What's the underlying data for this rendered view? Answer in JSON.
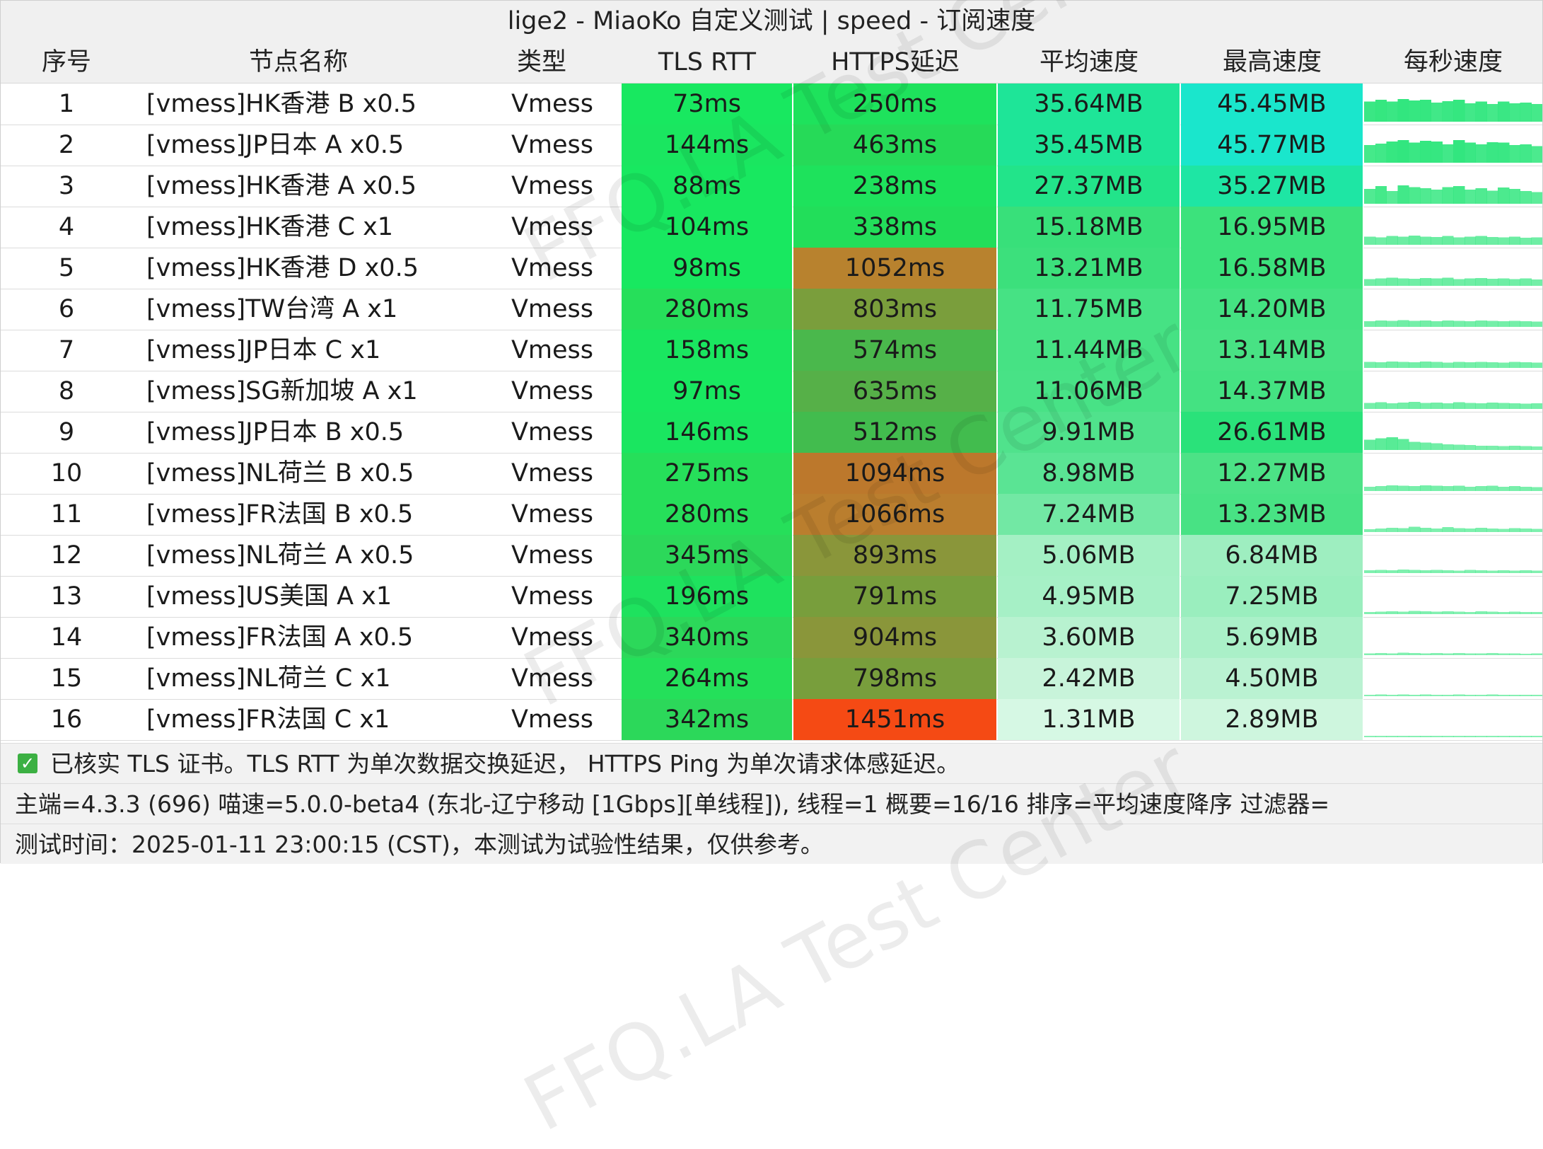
{
  "title": "lige2 - MiaoKo 自定义测试 | speed - 订阅速度",
  "columns": [
    "序号",
    "节点名称",
    "类型",
    "TLS RTT",
    "HTTPS延迟",
    "平均速度",
    "最高速度",
    "每秒速度"
  ],
  "rows": [
    {
      "idx": "1",
      "name": "[vmess]HK香港 B x0.5",
      "type": "Vmess",
      "rtt": "73ms",
      "https": "250ms",
      "avg": "35.64MB",
      "max": "45.45MB",
      "rtt_color": "#18e860",
      "https_color": "#1ee25c",
      "avg_color": "#1ee598",
      "max_color": "#1ae6cc",
      "spark": [
        0.55,
        0.6,
        0.55,
        0.62,
        0.58,
        0.6,
        0.52,
        0.56,
        0.6,
        0.5,
        0.55,
        0.48,
        0.55,
        0.5,
        0.52,
        0.48
      ]
    },
    {
      "idx": "2",
      "name": "[vmess]JP日本 A x0.5",
      "type": "Vmess",
      "rtt": "144ms",
      "https": "463ms",
      "avg": "35.45MB",
      "max": "45.77MB",
      "rtt_color": "#1ae660",
      "https_color": "#26da58",
      "avg_color": "#1ee598",
      "max_color": "#1ae6cc",
      "spark": [
        0.48,
        0.52,
        0.58,
        0.62,
        0.55,
        0.6,
        0.58,
        0.5,
        0.62,
        0.55,
        0.5,
        0.56,
        0.55,
        0.48,
        0.5,
        0.45
      ]
    },
    {
      "idx": "3",
      "name": "[vmess]HK香港 A x0.5",
      "type": "Vmess",
      "rtt": "88ms",
      "https": "238ms",
      "avg": "27.37MB",
      "max": "35.27MB",
      "rtt_color": "#18e860",
      "https_color": "#1ee25c",
      "avg_color": "#22e48a",
      "max_color": "#1ee6a4",
      "spark": [
        0.4,
        0.48,
        0.35,
        0.5,
        0.45,
        0.42,
        0.38,
        0.45,
        0.48,
        0.38,
        0.42,
        0.36,
        0.44,
        0.4,
        0.35,
        0.32
      ]
    },
    {
      "idx": "4",
      "name": "[vmess]HK香港 C x1",
      "type": "Vmess",
      "rtt": "104ms",
      "https": "338ms",
      "avg": "15.18MB",
      "max": "16.95MB",
      "rtt_color": "#18e860",
      "https_color": "#22de5a",
      "avg_color": "#38e07a",
      "max_color": "#3ce27c",
      "spark": [
        0.22,
        0.2,
        0.24,
        0.22,
        0.25,
        0.22,
        0.21,
        0.24,
        0.2,
        0.22,
        0.24,
        0.21,
        0.2,
        0.22,
        0.19,
        0.2
      ]
    },
    {
      "idx": "5",
      "name": "[vmess]HK香港 D x0.5",
      "type": "Vmess",
      "rtt": "98ms",
      "https": "1052ms",
      "avg": "13.21MB",
      "max": "16.58MB",
      "rtt_color": "#18e860",
      "https_color": "#b8822e",
      "avg_color": "#3ce07c",
      "max_color": "#3ce27c",
      "spark": [
        0.18,
        0.2,
        0.22,
        0.2,
        0.19,
        0.21,
        0.2,
        0.22,
        0.18,
        0.2,
        0.21,
        0.19,
        0.2,
        0.18,
        0.2,
        0.17
      ]
    },
    {
      "idx": "6",
      "name": "[vmess]TW台湾 A x1",
      "type": "Vmess",
      "rtt": "280ms",
      "https": "803ms",
      "avg": "11.75MB",
      "max": "14.20MB",
      "rtt_color": "#26df5a",
      "https_color": "#7a9e3c",
      "avg_color": "#46e284",
      "max_color": "#44e282",
      "spark": [
        0.15,
        0.17,
        0.16,
        0.18,
        0.16,
        0.17,
        0.15,
        0.17,
        0.16,
        0.15,
        0.17,
        0.16,
        0.15,
        0.16,
        0.15,
        0.14
      ]
    },
    {
      "idx": "7",
      "name": "[vmess]JP日本 C x1",
      "type": "Vmess",
      "rtt": "158ms",
      "https": "574ms",
      "avg": "11.44MB",
      "max": "13.14MB",
      "rtt_color": "#1ae660",
      "https_color": "#4ab84c",
      "avg_color": "#46e284",
      "max_color": "#48e284",
      "spark": [
        0.16,
        0.15,
        0.17,
        0.16,
        0.15,
        0.17,
        0.16,
        0.14,
        0.16,
        0.15,
        0.16,
        0.15,
        0.14,
        0.16,
        0.15,
        0.14
      ]
    },
    {
      "idx": "8",
      "name": "[vmess]SG新加坡 A x1",
      "type": "Vmess",
      "rtt": "97ms",
      "https": "635ms",
      "avg": "11.06MB",
      "max": "14.37MB",
      "rtt_color": "#18e860",
      "https_color": "#56b048",
      "avg_color": "#48e286",
      "max_color": "#44e282",
      "spark": [
        0.16,
        0.18,
        0.15,
        0.17,
        0.19,
        0.16,
        0.17,
        0.15,
        0.18,
        0.16,
        0.15,
        0.17,
        0.16,
        0.15,
        0.14,
        0.15
      ]
    },
    {
      "idx": "9",
      "name": "[vmess]JP日本 B x0.5",
      "type": "Vmess",
      "rtt": "146ms",
      "https": "512ms",
      "avg": "9.91MB",
      "max": "26.61MB",
      "rtt_color": "#1ae660",
      "https_color": "#42bc4e",
      "avg_color": "#50e28c",
      "max_color": "#2ae27a",
      "spark": [
        0.28,
        0.32,
        0.35,
        0.3,
        0.22,
        0.2,
        0.18,
        0.15,
        0.14,
        0.13,
        0.12,
        0.12,
        0.11,
        0.12,
        0.11,
        0.1
      ]
    },
    {
      "idx": "10",
      "name": "[vmess]NL荷兰 B x0.5",
      "type": "Vmess",
      "rtt": "275ms",
      "https": "1094ms",
      "avg": "8.98MB",
      "max": "12.27MB",
      "rtt_color": "#26df5a",
      "https_color": "#bc782c",
      "avg_color": "#5ae494",
      "max_color": "#4ce286",
      "spark": [
        0.12,
        0.13,
        0.15,
        0.14,
        0.13,
        0.15,
        0.14,
        0.13,
        0.14,
        0.12,
        0.13,
        0.14,
        0.12,
        0.13,
        0.12,
        0.11
      ]
    },
    {
      "idx": "11",
      "name": "[vmess]FR法国 B x0.5",
      "type": "Vmess",
      "rtt": "280ms",
      "https": "1066ms",
      "avg": "7.24MB",
      "max": "13.23MB",
      "rtt_color": "#26df5a",
      "https_color": "#ba7e2e",
      "avg_color": "#72e8a4",
      "max_color": "#48e284",
      "spark": [
        0.08,
        0.1,
        0.12,
        0.11,
        0.14,
        0.12,
        0.1,
        0.13,
        0.11,
        0.1,
        0.12,
        0.1,
        0.09,
        0.11,
        0.1,
        0.09
      ]
    },
    {
      "idx": "12",
      "name": "[vmess]NL荷兰 A x0.5",
      "type": "Vmess",
      "rtt": "345ms",
      "https": "893ms",
      "avg": "5.06MB",
      "max": "6.84MB",
      "rtt_color": "#2cd85a",
      "https_color": "#8a963a",
      "avg_color": "#a4f0c4",
      "max_color": "#9eeec0",
      "spark": [
        0.08,
        0.09,
        0.08,
        0.1,
        0.09,
        0.08,
        0.09,
        0.08,
        0.07,
        0.09,
        0.08,
        0.07,
        0.08,
        0.07,
        0.08,
        0.07
      ]
    },
    {
      "idx": "13",
      "name": "[vmess]US美国 A x1",
      "type": "Vmess",
      "rtt": "196ms",
      "https": "791ms",
      "avg": "4.95MB",
      "max": "7.25MB",
      "rtt_color": "#1ee25e",
      "https_color": "#789e3c",
      "avg_color": "#a6f0c6",
      "max_color": "#9aeebe",
      "spark": [
        0.06,
        0.07,
        0.08,
        0.07,
        0.09,
        0.08,
        0.07,
        0.08,
        0.07,
        0.06,
        0.08,
        0.07,
        0.06,
        0.07,
        0.06,
        0.06
      ]
    },
    {
      "idx": "14",
      "name": "[vmess]FR法国 A x0.5",
      "type": "Vmess",
      "rtt": "340ms",
      "https": "904ms",
      "avg": "3.60MB",
      "max": "5.69MB",
      "rtt_color": "#2cd85a",
      "https_color": "#8a963a",
      "avg_color": "#b8f2d0",
      "max_color": "#aaf0c8",
      "spark": [
        0.05,
        0.06,
        0.05,
        0.07,
        0.06,
        0.05,
        0.06,
        0.05,
        0.06,
        0.05,
        0.05,
        0.06,
        0.05,
        0.05,
        0.04,
        0.05
      ]
    },
    {
      "idx": "15",
      "name": "[vmess]NL荷兰 C x1",
      "type": "Vmess",
      "rtt": "264ms",
      "https": "798ms",
      "avg": "2.42MB",
      "max": "4.50MB",
      "rtt_color": "#24e05a",
      "https_color": "#789e3c",
      "avg_color": "#c8f4da",
      "max_color": "#baf2d2",
      "spark": [
        0.04,
        0.05,
        0.04,
        0.05,
        0.04,
        0.05,
        0.04,
        0.04,
        0.05,
        0.04,
        0.04,
        0.05,
        0.04,
        0.04,
        0.04,
        0.04
      ]
    },
    {
      "idx": "16",
      "name": "[vmess]FR法国 C x1",
      "type": "Vmess",
      "rtt": "342ms",
      "https": "1451ms",
      "avg": "1.31MB",
      "max": "2.89MB",
      "rtt_color": "#2cd85a",
      "https_color": "#f54a14",
      "avg_color": "#d6f8e4",
      "max_color": "#cef6de",
      "spark": [
        0.03,
        0.03,
        0.04,
        0.03,
        0.03,
        0.04,
        0.03,
        0.03,
        0.03,
        0.04,
        0.03,
        0.03,
        0.03,
        0.03,
        0.03,
        0.03
      ]
    }
  ],
  "footer": {
    "line1": "已核实 TLS 证书。TLS RTT 为单次数据交换延迟， HTTPS Ping 为单次请求体感延迟。",
    "line2": "主端=4.3.3 (696) 喵速=5.0.0-beta4 (东北-辽宁移动 [1Gbps][单线程]), 线程=1 概要=16/16 排序=平均速度降序 过滤器=",
    "line3": "测试时间：2025-01-11 23:00:15 (CST)，本测试为试验性结果，仅供参考。"
  },
  "watermark": "FFQ.LA Test Center",
  "colors": {
    "spark_bar": "#2ee67c",
    "header_bg": "#f0f0f0",
    "check": "#3cb043"
  },
  "icons": {
    "verified": "checkbox-checked-icon"
  }
}
